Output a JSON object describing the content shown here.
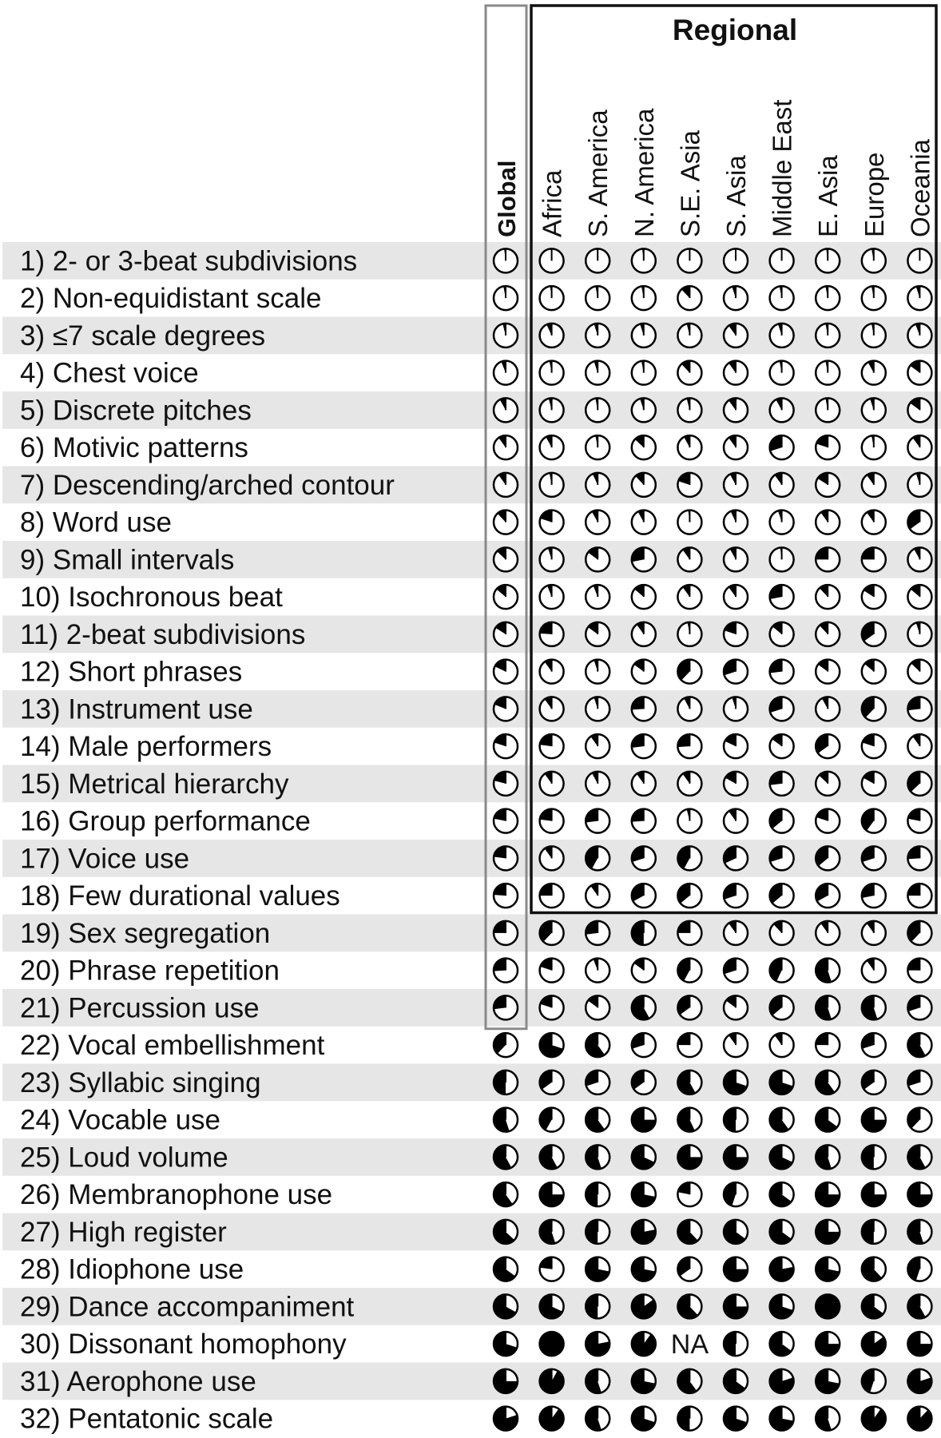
{
  "chart_data": {
    "type": "table",
    "regional_title": "Regional",
    "columns": [
      "Global",
      "Africa",
      "S. America",
      "N. America",
      "S.E. Asia",
      "S. Asia",
      "Middle East",
      "E. Asia",
      "Europe",
      "Oceania"
    ],
    "value_unit": "fraction of pie filled (proportion of recordings with feature)",
    "rows": [
      {
        "label": "1) 2- or 3-beat subdivisions",
        "values": [
          0.02,
          0.01,
          0.01,
          0.02,
          0.01,
          0.01,
          0.01,
          0.02,
          0.03,
          0.01
        ]
      },
      {
        "label": "2) Non-equidistant scale",
        "values": [
          0.03,
          0.02,
          0.03,
          0.03,
          0.12,
          0.05,
          0.03,
          0.03,
          0.03,
          0.05
        ]
      },
      {
        "label": "3) ≤7 scale degrees",
        "values": [
          0.04,
          0.07,
          0.05,
          0.05,
          0.04,
          0.1,
          0.05,
          0.03,
          0.03,
          0.06
        ]
      },
      {
        "label": "4) Chest voice",
        "values": [
          0.06,
          0.03,
          0.05,
          0.03,
          0.12,
          0.1,
          0.03,
          0.03,
          0.08,
          0.15
        ]
      },
      {
        "label": "5) Discrete pitches",
        "values": [
          0.08,
          0.04,
          0.03,
          0.05,
          0.04,
          0.1,
          0.08,
          0.03,
          0.05,
          0.15
        ]
      },
      {
        "label": "6) Motivic patterns",
        "values": [
          0.1,
          0.08,
          0.03,
          0.13,
          0.08,
          0.1,
          0.3,
          0.2,
          0.03,
          0.1
        ]
      },
      {
        "label": "7) Descending/arched contour",
        "values": [
          0.1,
          0.03,
          0.07,
          0.12,
          0.2,
          0.08,
          0.1,
          0.16,
          0.1,
          0.05
        ]
      },
      {
        "label": "8) Word use",
        "values": [
          0.12,
          0.2,
          0.08,
          0.08,
          0.02,
          0.07,
          0.05,
          0.1,
          0.1,
          0.35
        ]
      },
      {
        "label": "9) Small intervals",
        "values": [
          0.13,
          0.05,
          0.15,
          0.28,
          0.1,
          0.08,
          0.02,
          0.25,
          0.25,
          0.08
        ]
      },
      {
        "label": "10) Isochronous beat",
        "values": [
          0.14,
          0.06,
          0.06,
          0.14,
          0.1,
          0.1,
          0.28,
          0.12,
          0.16,
          0.14
        ]
      },
      {
        "label": "11) 2-beat subdivisions",
        "values": [
          0.16,
          0.24,
          0.15,
          0.1,
          0.03,
          0.2,
          0.14,
          0.12,
          0.35,
          0.05
        ]
      },
      {
        "label": "12) Short phrases",
        "values": [
          0.18,
          0.1,
          0.05,
          0.15,
          0.38,
          0.3,
          0.27,
          0.15,
          0.14,
          0.13
        ]
      },
      {
        "label": "13) Instrument use",
        "values": [
          0.19,
          0.1,
          0.05,
          0.26,
          0.08,
          0.05,
          0.3,
          0.08,
          0.38,
          0.27
        ]
      },
      {
        "label": "14) Male performers",
        "values": [
          0.2,
          0.23,
          0.1,
          0.27,
          0.26,
          0.18,
          0.15,
          0.35,
          0.2,
          0.1
        ]
      },
      {
        "label": "15) Metrical hierarchy",
        "values": [
          0.21,
          0.1,
          0.08,
          0.1,
          0.1,
          0.17,
          0.27,
          0.13,
          0.17,
          0.37
        ]
      },
      {
        "label": "16) Group performance",
        "values": [
          0.22,
          0.23,
          0.27,
          0.26,
          0.04,
          0.1,
          0.36,
          0.2,
          0.4,
          0.22
        ]
      },
      {
        "label": "17) Voice use",
        "values": [
          0.23,
          0.1,
          0.42,
          0.3,
          0.42,
          0.32,
          0.3,
          0.36,
          0.3,
          0.26
        ]
      },
      {
        "label": "18) Few durational values",
        "values": [
          0.24,
          0.25,
          0.1,
          0.33,
          0.36,
          0.3,
          0.36,
          0.33,
          0.28,
          0.25
        ]
      },
      {
        "label": "19) Sex segregation",
        "values": [
          0.25,
          0.38,
          0.27,
          0.5,
          0.25,
          0.1,
          0.12,
          0.1,
          0.1,
          0.38
        ]
      },
      {
        "label": "20) Phrase repetition",
        "values": [
          0.26,
          0.2,
          0.06,
          0.15,
          0.42,
          0.3,
          0.43,
          0.55,
          0.1,
          0.25
        ]
      },
      {
        "label": "21) Percussion use",
        "values": [
          0.27,
          0.2,
          0.15,
          0.58,
          0.35,
          0.15,
          0.36,
          0.55,
          0.55,
          0.3
        ]
      },
      {
        "label": "22) Vocal embellishment",
        "values": [
          0.38,
          0.7,
          0.6,
          0.3,
          0.25,
          0.1,
          0.1,
          0.25,
          0.3,
          0.58
        ]
      },
      {
        "label": "23) Syllabic singing",
        "values": [
          0.5,
          0.35,
          0.3,
          0.35,
          0.58,
          0.7,
          0.7,
          0.6,
          0.35,
          0.3
        ]
      },
      {
        "label": "24) Vocable use",
        "values": [
          0.55,
          0.42,
          0.6,
          0.75,
          0.57,
          0.5,
          0.6,
          0.65,
          0.75,
          0.38
        ]
      },
      {
        "label": "25) Loud volume",
        "values": [
          0.58,
          0.58,
          0.55,
          0.68,
          0.75,
          0.75,
          0.68,
          0.55,
          0.5,
          0.58
        ]
      },
      {
        "label": "26) Membranophone use",
        "values": [
          0.6,
          0.75,
          0.5,
          0.72,
          0.22,
          0.45,
          0.65,
          0.75,
          0.75,
          0.75
        ]
      },
      {
        "label": "27) High register",
        "values": [
          0.63,
          0.55,
          0.5,
          0.78,
          0.62,
          0.65,
          0.65,
          0.75,
          0.5,
          0.55
        ]
      },
      {
        "label": "28) Idiophone use",
        "values": [
          0.65,
          0.23,
          0.72,
          0.72,
          0.35,
          0.75,
          0.78,
          0.72,
          0.62,
          0.45
        ]
      },
      {
        "label": "29) Dance accompaniment",
        "values": [
          0.67,
          0.68,
          0.5,
          0.85,
          0.62,
          0.75,
          0.7,
          1.0,
          0.65,
          0.58
        ]
      },
      {
        "label": "30) Dissonant homophony",
        "values": [
          0.7,
          1.0,
          0.78,
          0.9,
          null,
          0.5,
          0.65,
          0.75,
          0.85,
          0.75
        ]
      },
      {
        "label": "31) Aerophone use",
        "values": [
          0.75,
          0.92,
          0.55,
          0.72,
          0.6,
          0.65,
          0.8,
          0.72,
          0.45,
          0.8
        ]
      },
      {
        "label": "32) Pentatonic scale",
        "values": [
          0.8,
          0.9,
          0.55,
          0.7,
          0.5,
          0.7,
          0.72,
          0.55,
          0.9,
          0.88
        ]
      }
    ],
    "na_label": "NA",
    "global_box_rows": 21,
    "regional_box_rows": 18
  }
}
